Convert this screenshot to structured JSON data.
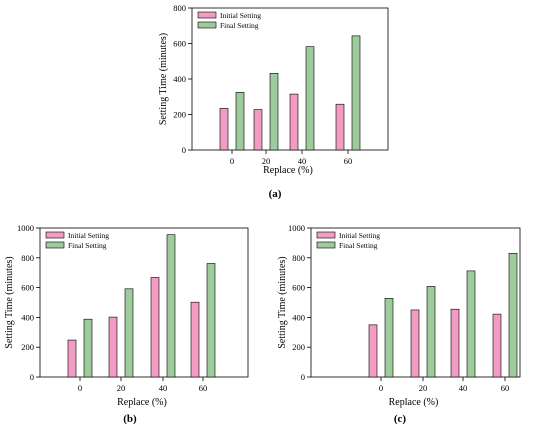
{
  "colors": {
    "initial": "#F39CC3",
    "final": "#9ECB9B",
    "axis": "#000000",
    "bar_stroke": "#000000"
  },
  "legend": [
    "Initial Setting",
    "Final Setting"
  ],
  "panel_labels": [
    "(a)",
    "(b)",
    "(c)"
  ],
  "chart_data": [
    {
      "type": "bar",
      "title": "",
      "xlabel": "Replace (%)",
      "ylabel": "Setting Time (minutes)",
      "categories": [
        "0",
        "20",
        "40",
        "60"
      ],
      "ylim": [
        0,
        800
      ],
      "yticks": [
        0,
        200,
        400,
        600,
        800
      ],
      "legend_position": "top-left",
      "series": [
        {
          "name": "Initial Setting",
          "values": [
            235,
            228,
            315,
            258
          ]
        },
        {
          "name": "Final Setting",
          "values": [
            325,
            432,
            582,
            643
          ]
        }
      ]
    },
    {
      "type": "bar",
      "title": "",
      "xlabel": "Replace (%)",
      "ylabel": "Setting Time (minutes)",
      "categories": [
        "0",
        "20",
        "40",
        "60"
      ],
      "ylim": [
        0,
        1000
      ],
      "yticks": [
        0,
        200,
        400,
        600,
        800,
        1000
      ],
      "legend_position": "top-left",
      "series": [
        {
          "name": "Initial Setting",
          "values": [
            248,
            402,
            668,
            502
          ]
        },
        {
          "name": "Final Setting",
          "values": [
            388,
            592,
            955,
            762
          ]
        }
      ]
    },
    {
      "type": "bar",
      "title": "",
      "xlabel": "Replace (%)",
      "ylabel": "Setting Time (minutes)",
      "categories": [
        "0",
        "20",
        "40",
        "60"
      ],
      "ylim": [
        0,
        1000
      ],
      "yticks": [
        0,
        200,
        400,
        600,
        800,
        1000
      ],
      "legend_position": "top-left",
      "series": [
        {
          "name": "Initial Setting",
          "values": [
            350,
            450,
            455,
            422
          ]
        },
        {
          "name": "Final Setting",
          "values": [
            528,
            608,
            712,
            830
          ]
        }
      ]
    }
  ]
}
